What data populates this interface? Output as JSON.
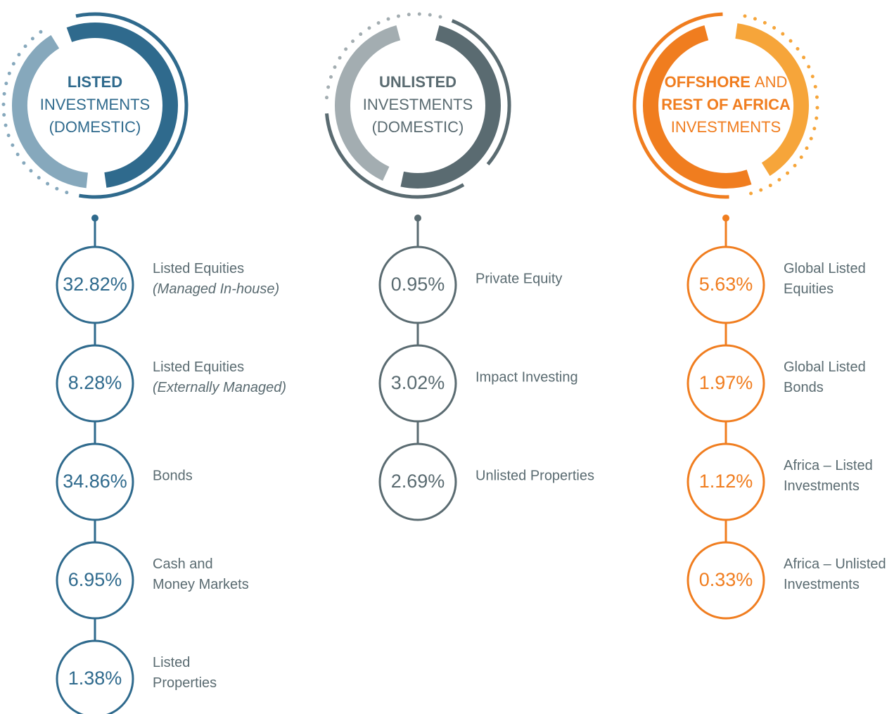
{
  "columns": [
    {
      "header": [
        [
          {
            "text": "LISTED",
            "bold": true
          }
        ],
        [
          {
            "text": "INVESTMENTS"
          }
        ],
        [
          {
            "text": "(DOMESTIC)"
          }
        ]
      ],
      "color": "#2f6a8d",
      "light": "#86a8bc",
      "items": [
        {
          "value": "32.82%",
          "label": [
            "Listed Equities"
          ],
          "note": "(Managed In-house)"
        },
        {
          "value": "8.28%",
          "label": [
            "Listed Equities"
          ],
          "note": "(Externally Managed)"
        },
        {
          "value": "34.86%",
          "label": [
            "Bonds"
          ]
        },
        {
          "value": "6.95%",
          "label": [
            "Cash and",
            "Money Markets"
          ]
        },
        {
          "value": "1.38%",
          "label": [
            "Listed",
            "Properties"
          ]
        }
      ]
    },
    {
      "header": [
        [
          {
            "text": "UNLISTED",
            "bold": true
          }
        ],
        [
          {
            "text": "INVESTMENTS"
          }
        ],
        [
          {
            "text": "(DOMESTIC)"
          }
        ]
      ],
      "color": "#5a6b71",
      "light": "#a3adb1",
      "items": [
        {
          "value": "0.95%",
          "label": [
            "Private Equity"
          ]
        },
        {
          "value": "3.02%",
          "label": [
            "Impact Investing"
          ]
        },
        {
          "value": "2.69%",
          "label": [
            "Unlisted Properties"
          ]
        }
      ]
    },
    {
      "header": [
        [
          {
            "text": "OFFSHORE",
            "bold": true
          },
          {
            "text": "AND"
          }
        ],
        [
          {
            "text": "REST OF AFRICA",
            "bold": true
          }
        ],
        [
          {
            "text": "INVESTMENTS"
          }
        ]
      ],
      "color": "#f07d1f",
      "light": "#f6a53a",
      "items": [
        {
          "value": "5.63%",
          "label": [
            "Global Listed",
            "Equities"
          ]
        },
        {
          "value": "1.97%",
          "label": [
            "Global Listed",
            "Bonds"
          ]
        },
        {
          "value": "1.12%",
          "label": [
            "Africa – Listed",
            "Investments"
          ]
        },
        {
          "value": "0.33%",
          "label": [
            "Africa – Unlisted",
            "Investments"
          ]
        }
      ]
    }
  ]
}
